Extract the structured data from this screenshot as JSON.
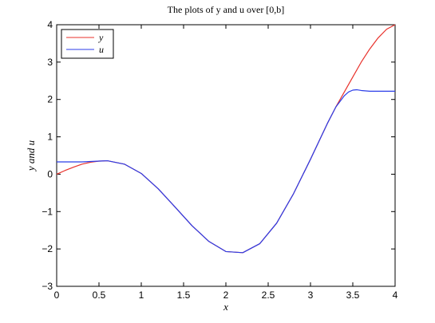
{
  "chart_data": {
    "type": "line",
    "title": "The plots of y and u over [0,b]",
    "xlabel": "x",
    "ylabel": "y and u",
    "xlim": [
      0,
      4
    ],
    "ylim": [
      -3,
      4
    ],
    "x_ticks": [
      "0",
      "0.5",
      "1",
      "1.5",
      "2",
      "2.5",
      "3",
      "3.5",
      "4"
    ],
    "y_ticks": [
      "−3",
      "−2",
      "−1",
      "0",
      "1",
      "2",
      "3",
      "4"
    ],
    "legend_position": "top-left",
    "grid": false,
    "series": [
      {
        "name": "y",
        "color": "#e8312b",
        "x": [
          0,
          0.1,
          0.2,
          0.3,
          0.4,
          0.5,
          0.6,
          0.8,
          1.0,
          1.2,
          1.4,
          1.6,
          1.8,
          2.0,
          2.2,
          2.4,
          2.6,
          2.8,
          3.0,
          3.2,
          3.3,
          3.4,
          3.5,
          3.6,
          3.7,
          3.8,
          3.9,
          4.0
        ],
        "values": [
          0.0,
          0.1,
          0.19,
          0.27,
          0.32,
          0.35,
          0.36,
          0.27,
          0.02,
          -0.39,
          -0.88,
          -1.38,
          -1.8,
          -2.07,
          -2.1,
          -1.86,
          -1.31,
          -0.52,
          0.4,
          1.36,
          1.8,
          2.2,
          2.6,
          3.0,
          3.35,
          3.65,
          3.88,
          4.0
        ]
      },
      {
        "name": "u",
        "color": "#2b3de8",
        "x": [
          0,
          0.1,
          0.2,
          0.3,
          0.4,
          0.5,
          0.6,
          0.8,
          1.0,
          1.2,
          1.4,
          1.6,
          1.8,
          2.0,
          2.2,
          2.4,
          2.6,
          2.8,
          3.0,
          3.2,
          3.3,
          3.4,
          3.45,
          3.5,
          3.55,
          3.6,
          3.7,
          3.8,
          3.9,
          4.0
        ],
        "values": [
          0.33,
          0.33,
          0.33,
          0.33,
          0.34,
          0.35,
          0.36,
          0.27,
          0.02,
          -0.39,
          -0.88,
          -1.38,
          -1.8,
          -2.07,
          -2.1,
          -1.86,
          -1.31,
          -0.52,
          0.4,
          1.36,
          1.8,
          2.1,
          2.2,
          2.25,
          2.26,
          2.24,
          2.22,
          2.22,
          2.22,
          2.22
        ]
      }
    ]
  }
}
